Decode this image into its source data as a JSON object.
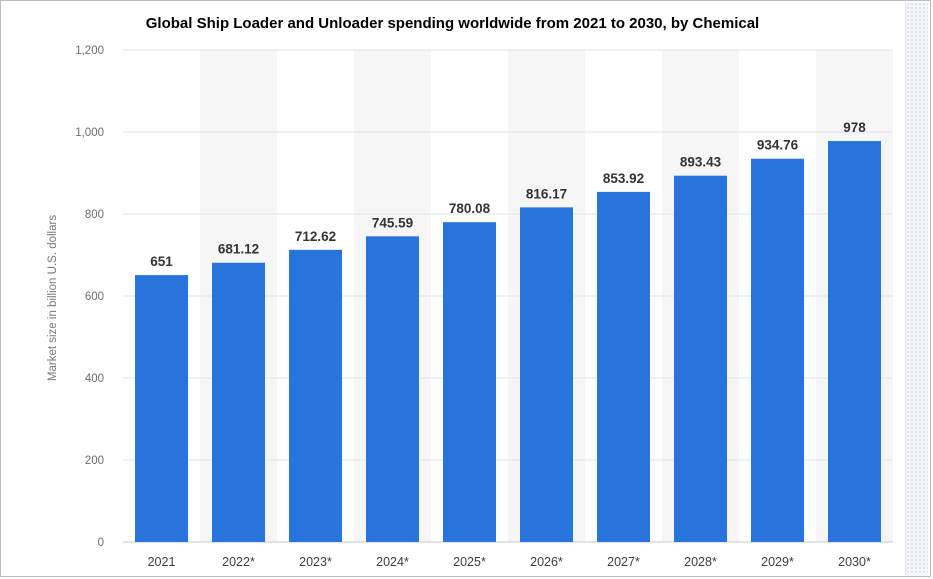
{
  "chart_data": {
    "type": "bar",
    "title": "Global Ship Loader and Unloader spending worldwide from 2021 to 2030, by Chemical",
    "xlabel": "",
    "ylabel": "Market size in billion U.S. dollars",
    "categories": [
      "2021",
      "2022*",
      "2023*",
      "2024*",
      "2025*",
      "2026*",
      "2027*",
      "2028*",
      "2029*",
      "2030*"
    ],
    "values": [
      651,
      681.12,
      712.62,
      745.59,
      780.08,
      816.17,
      853.92,
      893.43,
      934.76,
      978
    ],
    "data_labels": [
      "651",
      "681.12",
      "712.62",
      "745.59",
      "780.08",
      "816.17",
      "853.92",
      "893.43",
      "934.76",
      "978"
    ],
    "ylim": [
      0,
      1200
    ],
    "yticks": [
      0,
      200,
      400,
      600,
      800,
      1000,
      1200
    ],
    "ytick_labels": [
      "0",
      "200",
      "400",
      "600",
      "800",
      "1,000",
      "1,200"
    ],
    "grid": true,
    "bar_color": "#2874dd"
  }
}
